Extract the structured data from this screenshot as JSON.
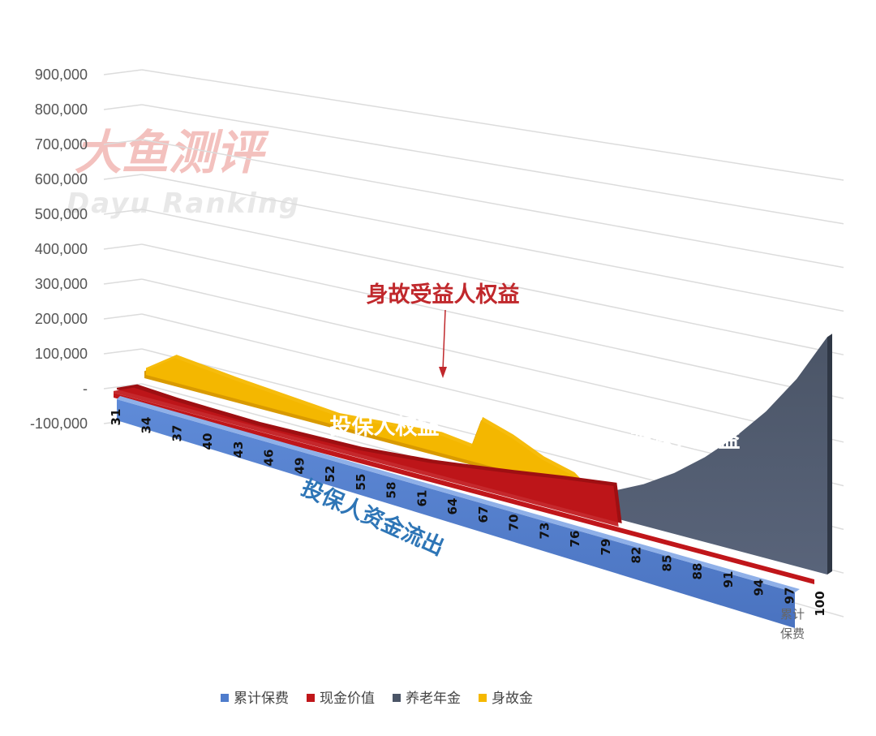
{
  "watermark": {
    "cn": "大鱼测评",
    "en": "Dayu Ranking"
  },
  "annotations": {
    "death_benefit": "身故受益人权益",
    "policyholder": "投保人权益",
    "insured": "被保人权益",
    "outflow": "投保人资金流出"
  },
  "side_label": {
    "line1": "累计",
    "line2": "保费"
  },
  "colors": {
    "premium": "#4f7ccc",
    "cash_value": "#c0161a",
    "annuity": "#4b5567",
    "death": "#f5b800",
    "annotation_red": "#c0282c",
    "annotation_blue": "#2e75b6"
  },
  "chart_data": {
    "type": "area",
    "three_d": true,
    "x_tick_labels": [
      "31",
      "34",
      "37",
      "40",
      "43",
      "46",
      "49",
      "52",
      "55",
      "58",
      "61",
      "64",
      "67",
      "70",
      "73",
      "76",
      "79",
      "82",
      "85",
      "88",
      "91",
      "94",
      "97",
      "100"
    ],
    "ylim": [
      -100000,
      900000
    ],
    "y_tick_labels": [
      "900,000",
      "800,000",
      "700,000",
      "600,000",
      "500,000",
      "400,000",
      "300,000",
      "200,000",
      "100,000",
      "-",
      "-100,000"
    ],
    "grid": true,
    "legend_position": "bottom",
    "series": [
      {
        "name": "累计保费",
        "color": "#4f7ccc",
        "x": [
          31,
          100
        ],
        "values": [
          0,
          0
        ]
      },
      {
        "name": "现金价值",
        "color": "#c0161a",
        "x": [
          31,
          33,
          37,
          45,
          55,
          62,
          65,
          70,
          75,
          80,
          80.5
        ],
        "values": [
          5000,
          30000,
          22000,
          15000,
          20000,
          35000,
          45000,
          62000,
          80000,
          95000,
          0
        ]
      },
      {
        "name": "养老年金",
        "color": "#4b5567",
        "x": [
          31,
          70,
          73,
          76,
          79,
          82,
          85,
          88,
          91,
          94,
          97,
          100
        ],
        "values": [
          0,
          0,
          10000,
          35000,
          65000,
          100000,
          145000,
          200000,
          265000,
          340000,
          430000,
          540000
        ]
      },
      {
        "name": "身故金",
        "color": "#f5b800",
        "x": [
          31,
          34,
          40,
          50,
          60,
          63,
          64,
          67,
          70,
          73,
          75
        ],
        "values": [
          20000,
          80000,
          60000,
          35000,
          55000,
          45000,
          120000,
          95000,
          60000,
          40000,
          0
        ]
      }
    ]
  }
}
